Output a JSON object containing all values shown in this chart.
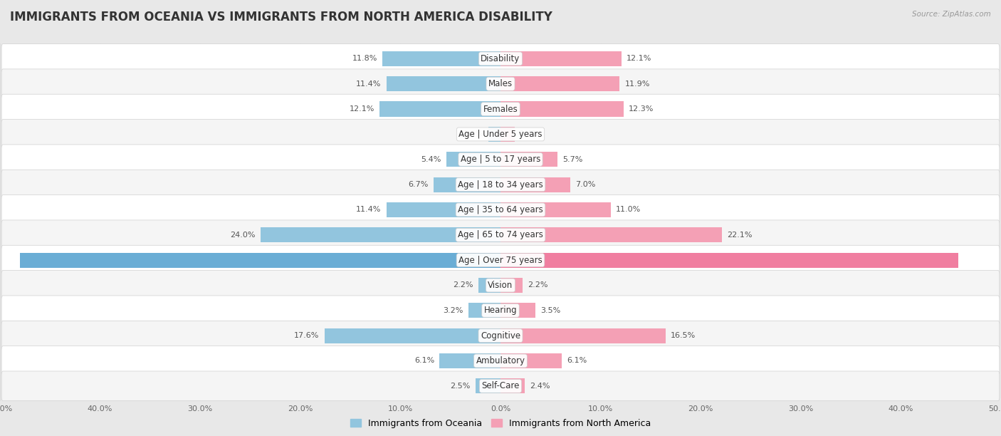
{
  "title": "IMMIGRANTS FROM OCEANIA VS IMMIGRANTS FROM NORTH AMERICA DISABILITY",
  "source": "Source: ZipAtlas.com",
  "categories": [
    "Disability",
    "Males",
    "Females",
    "Age | Under 5 years",
    "Age | 5 to 17 years",
    "Age | 18 to 34 years",
    "Age | 35 to 64 years",
    "Age | 65 to 74 years",
    "Age | Over 75 years",
    "Vision",
    "Hearing",
    "Cognitive",
    "Ambulatory",
    "Self-Care"
  ],
  "left_values": [
    11.8,
    11.4,
    12.1,
    1.2,
    5.4,
    6.7,
    11.4,
    24.0,
    48.0,
    2.2,
    3.2,
    17.6,
    6.1,
    2.5
  ],
  "right_values": [
    12.1,
    11.9,
    12.3,
    1.4,
    5.7,
    7.0,
    11.0,
    22.1,
    45.7,
    2.2,
    3.5,
    16.5,
    6.1,
    2.4
  ],
  "left_color": "#92C5DE",
  "right_color": "#F4A0B5",
  "left_color_strong": "#6aadd5",
  "right_color_strong": "#F07EA0",
  "left_label": "Immigrants from Oceania",
  "right_label": "Immigrants from North America",
  "axis_max": 50.0,
  "bg_color": "#e8e8e8",
  "row_bg_even": "#f5f5f5",
  "row_bg_odd": "#ffffff",
  "title_fontsize": 12,
  "label_fontsize": 8.5,
  "value_fontsize": 8
}
